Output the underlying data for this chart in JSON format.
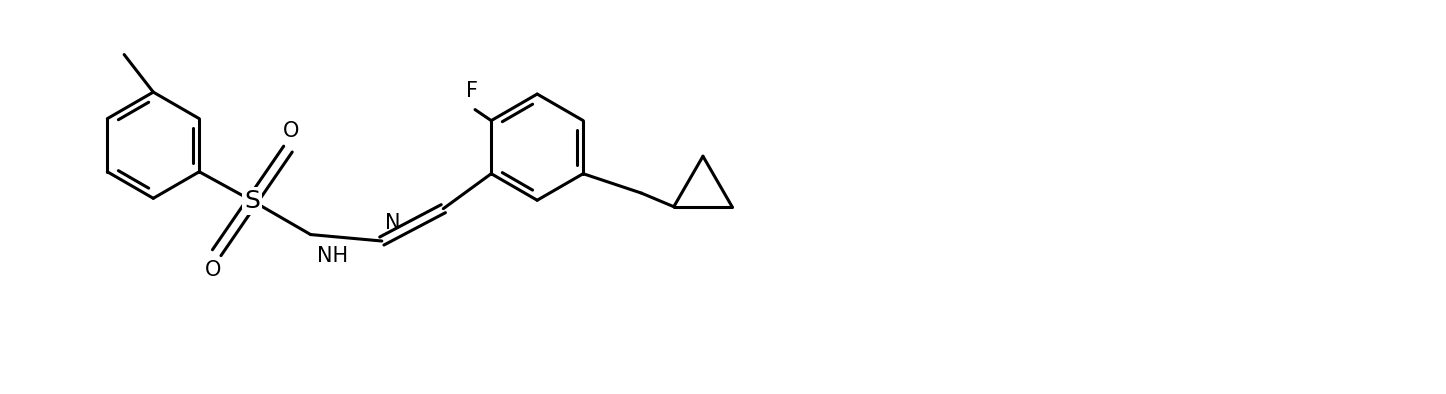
{
  "bg_color": "#ffffff",
  "line_color": "#000000",
  "line_width": 2.2,
  "font_size": 15,
  "figsize": [
    14.46,
    3.94
  ],
  "dpi": 100,
  "xlim": [
    0,
    22
  ],
  "ylim": [
    0,
    6
  ]
}
